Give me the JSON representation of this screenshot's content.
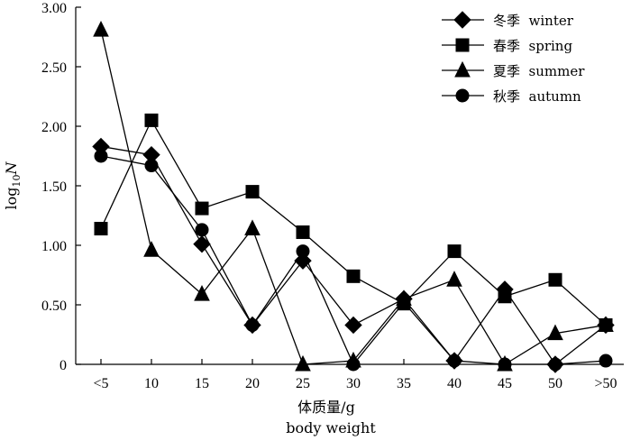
{
  "chart_data": {
    "type": "line",
    "categories": [
      "<5",
      "10",
      "15",
      "20",
      "25",
      "30",
      "35",
      "40",
      "45",
      "50",
      ">50"
    ],
    "ylim": [
      0,
      3.0
    ],
    "y_ticks": [
      "3.00",
      "2.50",
      "2.00",
      "1.50",
      "1.00",
      "0.50",
      "0"
    ],
    "y_tick_values": [
      3.0,
      2.5,
      2.0,
      1.5,
      1.0,
      0.5,
      0
    ],
    "ylabel": "log10N",
    "xlabel_cn": "体质量/g",
    "xlabel_en": "body weight",
    "grid": false,
    "legend_position": "top-right",
    "series": [
      {
        "name": "冬季  winter",
        "marker": "diamond",
        "values": [
          1.83,
          1.76,
          1.01,
          0.33,
          0.87,
          0.33,
          0.55,
          0.03,
          0.63,
          0.0,
          0.33
        ]
      },
      {
        "name": "春季  spring",
        "marker": "square",
        "values": [
          1.14,
          2.05,
          1.31,
          1.45,
          1.11,
          0.74,
          0.51,
          0.95,
          0.57,
          0.71,
          0.33
        ]
      },
      {
        "name": "夏季  summer",
        "marker": "triangle",
        "values": [
          2.81,
          0.96,
          0.59,
          1.14,
          0.0,
          0.03,
          0.55,
          0.71,
          0.0,
          0.26,
          0.33
        ]
      },
      {
        "name": "秋季  autumn",
        "marker": "circle",
        "values": [
          1.75,
          1.67,
          1.13,
          0.33,
          0.95,
          0.0,
          0.52,
          0.03,
          0.0,
          0.0,
          0.03
        ]
      }
    ]
  }
}
